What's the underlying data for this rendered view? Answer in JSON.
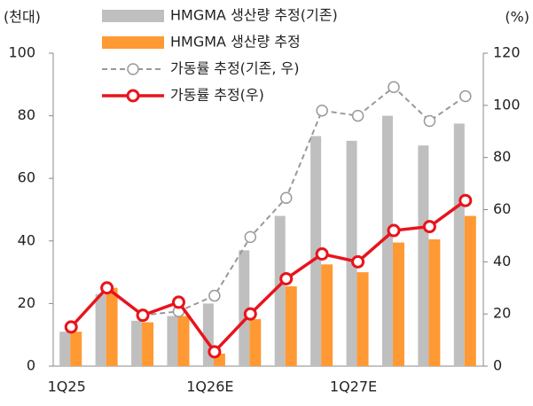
{
  "chart_data": {
    "type": "bar",
    "y_label": "(천대)",
    "y2_label": "(%)",
    "categories": [
      "1Q25",
      null,
      null,
      null,
      "1Q26E",
      null,
      null,
      null,
      "1Q27E",
      null,
      null,
      null
    ],
    "series": [
      {
        "name": "HMGMA 생산량 추정(기존)",
        "type": "bar",
        "color": "#bfbfbf",
        "values": [
          11,
          23,
          14.5,
          16,
          20,
          37,
          48,
          73.5,
          72,
          80,
          70.5,
          77.5
        ]
      },
      {
        "name": "HMGMA 생산량 추정",
        "type": "bar",
        "color": "#ff9933",
        "values": [
          11,
          25,
          14,
          16,
          4,
          15,
          25.5,
          32.5,
          30,
          39.5,
          40.5,
          48
        ]
      },
      {
        "name": "가동률 추정(기존, 우)",
        "type": "line",
        "axis": "y2",
        "dashed": true,
        "color": "#999999",
        "values": [
          15,
          30,
          19.5,
          21,
          27,
          49.5,
          64.5,
          98,
          96,
          107,
          94,
          103.5
        ]
      },
      {
        "name": "가동률 추정(우)",
        "type": "line",
        "axis": "y2",
        "dashed": false,
        "color": "#e8141c",
        "values": [
          15,
          30,
          19.5,
          24.5,
          5.5,
          20,
          33.5,
          43,
          40,
          52,
          53.5,
          63.5
        ]
      }
    ],
    "ylim": [
      0,
      100
    ],
    "yticks": [
      0,
      20,
      40,
      60,
      80,
      100
    ],
    "y2lim": [
      0,
      120
    ],
    "y2ticks": [
      0,
      20,
      40,
      60,
      80,
      100,
      120
    ]
  }
}
